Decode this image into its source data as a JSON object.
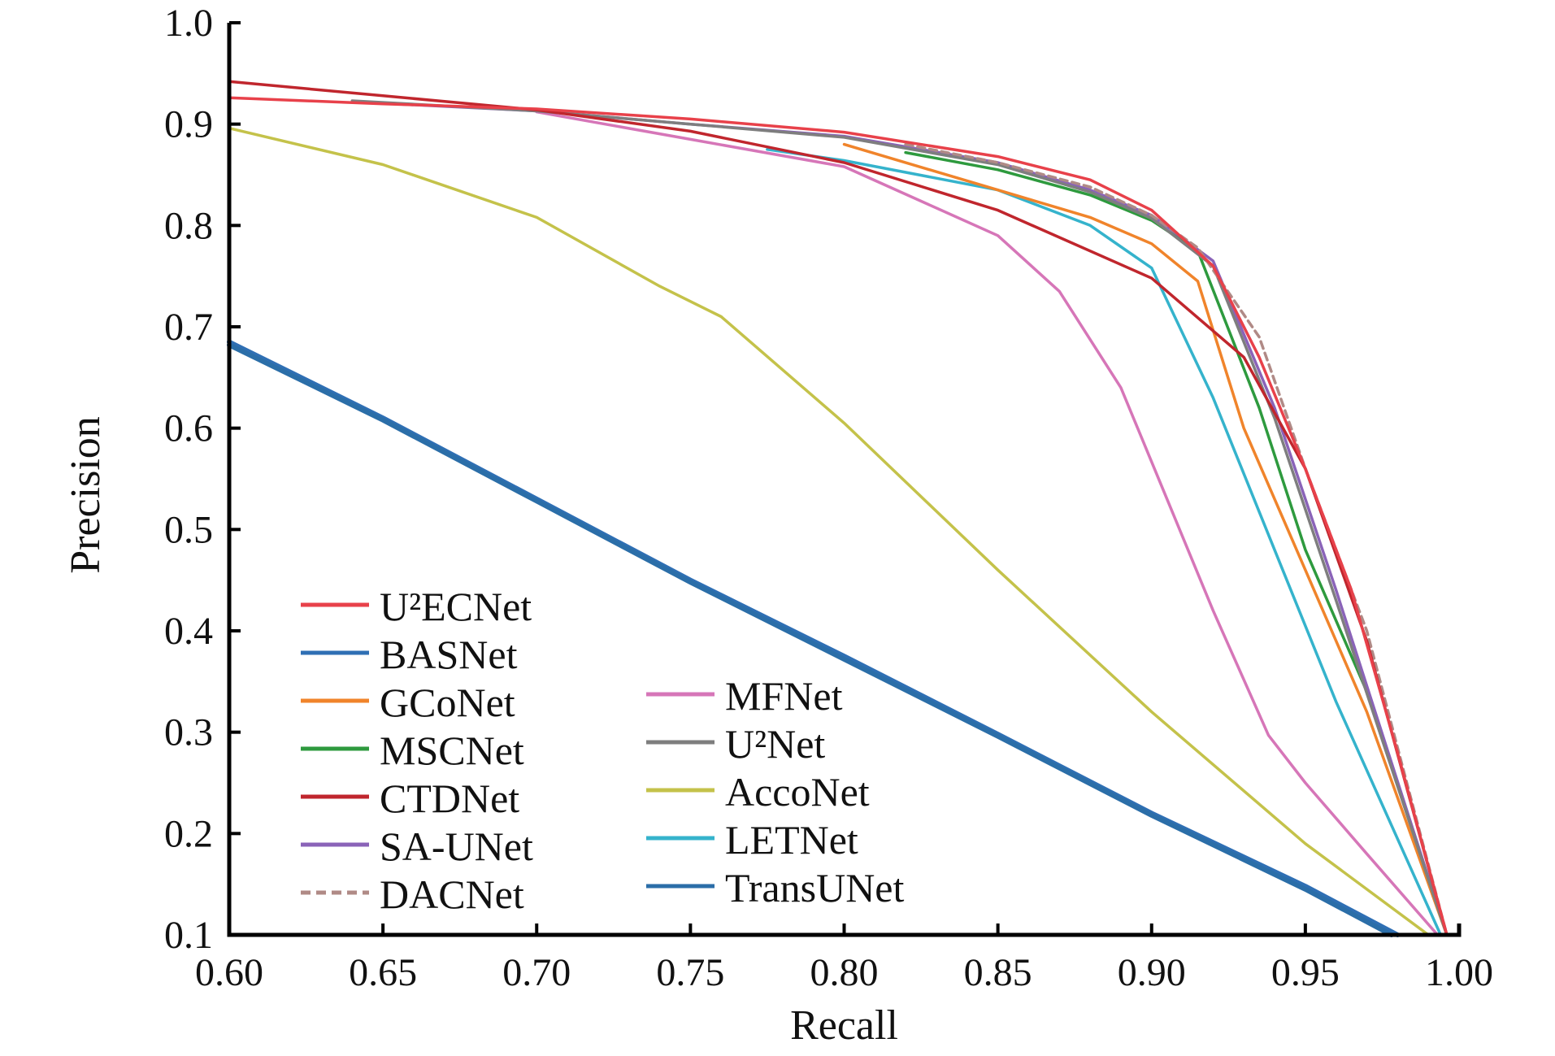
{
  "chart_data": {
    "type": "line",
    "xlabel": "Recall",
    "ylabel": "Precision",
    "xlim": [
      0.6,
      1.0
    ],
    "ylim": [
      0.1,
      1.0
    ],
    "x_ticks": [
      "0.60",
      "0.65",
      "0.70",
      "0.75",
      "0.80",
      "0.85",
      "0.90",
      "0.95",
      "1.00"
    ],
    "y_ticks": [
      "0.1",
      "0.2",
      "0.3",
      "0.4",
      "0.5",
      "0.6",
      "0.7",
      "0.8",
      "0.9",
      "1.0"
    ],
    "grid": false,
    "legend_placement": "bottom-left",
    "series": [
      {
        "name": "U²ECNet",
        "color": "#e8414a",
        "dash": false,
        "x": [
          0.6,
          0.65,
          0.7,
          0.75,
          0.8,
          0.85,
          0.88,
          0.9,
          0.92,
          0.935,
          0.95,
          0.965,
          0.98,
          0.996
        ],
        "y": [
          0.926,
          0.92,
          0.915,
          0.905,
          0.892,
          0.868,
          0.845,
          0.815,
          0.76,
          0.67,
          0.56,
          0.44,
          0.28,
          0.1
        ]
      },
      {
        "name": "BASNet",
        "color": "#2f6fb4",
        "dash": false,
        "x": [
          0.6,
          0.65,
          0.7,
          0.75,
          0.8,
          0.85,
          0.9,
          0.95,
          0.98
        ],
        "y": [
          0.685,
          0.61,
          0.53,
          0.45,
          0.375,
          0.298,
          0.22,
          0.148,
          0.1
        ]
      },
      {
        "name": "GCoNet",
        "color": "#f0842b",
        "dash": false,
        "x": [
          0.8,
          0.85,
          0.88,
          0.9,
          0.915,
          0.93,
          0.95,
          0.97,
          0.996
        ],
        "y": [
          0.88,
          0.835,
          0.808,
          0.782,
          0.745,
          0.6,
          0.46,
          0.32,
          0.1
        ]
      },
      {
        "name": "MSCNet",
        "color": "#2e9a3e",
        "dash": false,
        "x": [
          0.82,
          0.85,
          0.88,
          0.9,
          0.915,
          0.935,
          0.95,
          0.97,
          0.996
        ],
        "y": [
          0.872,
          0.855,
          0.83,
          0.805,
          0.775,
          0.62,
          0.48,
          0.34,
          0.1
        ]
      },
      {
        "name": "CTDNet",
        "color": "#c0262d",
        "dash": false,
        "x": [
          0.6,
          0.65,
          0.7,
          0.75,
          0.8,
          0.85,
          0.9,
          0.93,
          0.95,
          0.97,
          0.996
        ],
        "y": [
          0.942,
          0.928,
          0.914,
          0.893,
          0.862,
          0.815,
          0.748,
          0.67,
          0.56,
          0.39,
          0.1
        ]
      },
      {
        "name": "SA-UNet",
        "color": "#8a63b8",
        "dash": false,
        "x": [
          0.64,
          0.7,
          0.75,
          0.8,
          0.85,
          0.88,
          0.9,
          0.92,
          0.94,
          0.96,
          0.996
        ],
        "y": [
          0.922,
          0.913,
          0.9,
          0.888,
          0.862,
          0.835,
          0.81,
          0.765,
          0.62,
          0.44,
          0.1
        ]
      },
      {
        "name": "DACNet",
        "color": "#b08a86",
        "dash": true,
        "x": [
          0.82,
          0.85,
          0.88,
          0.9,
          0.915,
          0.935,
          0.95,
          0.97,
          0.996
        ],
        "y": [
          0.88,
          0.862,
          0.838,
          0.81,
          0.778,
          0.69,
          0.56,
          0.4,
          0.1
        ]
      },
      {
        "name": "MFNet",
        "color": "#d676b8",
        "dash": false,
        "x": [
          0.7,
          0.75,
          0.8,
          0.85,
          0.87,
          0.89,
          0.905,
          0.92,
          0.938,
          0.95,
          0.97,
          0.993
        ],
        "y": [
          0.912,
          0.885,
          0.858,
          0.79,
          0.735,
          0.64,
          0.53,
          0.42,
          0.297,
          0.25,
          0.18,
          0.1
        ]
      },
      {
        "name": "U²Net",
        "color": "#7e7e7e",
        "dash": false,
        "x": [
          0.64,
          0.7,
          0.75,
          0.8,
          0.85,
          0.88,
          0.9,
          0.92,
          0.94,
          0.96,
          0.996
        ],
        "y": [
          0.923,
          0.913,
          0.9,
          0.887,
          0.86,
          0.833,
          0.807,
          0.76,
          0.61,
          0.43,
          0.1
        ]
      },
      {
        "name": "AccoNet",
        "color": "#c4c24a",
        "dash": false,
        "x": [
          0.6,
          0.65,
          0.7,
          0.74,
          0.76,
          0.8,
          0.85,
          0.9,
          0.95,
          0.99
        ],
        "y": [
          0.896,
          0.86,
          0.808,
          0.74,
          0.71,
          0.605,
          0.46,
          0.32,
          0.19,
          0.1
        ]
      },
      {
        "name": "LETNet",
        "color": "#35b3cc",
        "dash": false,
        "x": [
          0.775,
          0.8,
          0.85,
          0.88,
          0.9,
          0.92,
          0.94,
          0.96,
          0.994
        ],
        "y": [
          0.875,
          0.864,
          0.835,
          0.8,
          0.758,
          0.63,
          0.48,
          0.33,
          0.1
        ]
      },
      {
        "name": "TransUNet",
        "color": "#2b6ea8",
        "dash": false,
        "x": [
          0.6,
          0.65,
          0.7,
          0.75,
          0.8,
          0.85,
          0.9,
          0.95,
          0.978
        ],
        "y": [
          0.682,
          0.608,
          0.528,
          0.448,
          0.372,
          0.296,
          0.218,
          0.145,
          0.1
        ]
      }
    ],
    "legend_columns": [
      [
        "U²ECNet",
        "BASNet",
        "GCoNet",
        "MSCNet",
        "CTDNet",
        "SA-UNet",
        "DACNet"
      ],
      [
        "MFNet",
        "U²Net",
        "AccoNet",
        "LETNet",
        "TransUNet"
      ]
    ]
  }
}
